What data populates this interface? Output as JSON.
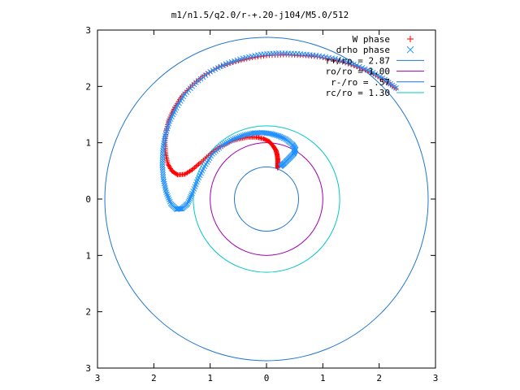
{
  "chart_data": {
    "type": "scatter",
    "title": "m1/n1.5/q2.0/r-+.20-j104/M5.0/512",
    "xlabel": "",
    "ylabel": "",
    "xlim": [
      -3,
      3
    ],
    "ylim": [
      -3,
      3
    ],
    "grid": false,
    "legend_position": "top-right",
    "x_ticks": [
      {
        "value": -3,
        "label": "3"
      },
      {
        "value": -2,
        "label": "2"
      },
      {
        "value": -1,
        "label": "1"
      },
      {
        "value": 0,
        "label": "0"
      },
      {
        "value": 1,
        "label": "1"
      },
      {
        "value": 2,
        "label": "2"
      },
      {
        "value": 3,
        "label": "3"
      }
    ],
    "y_ticks": [
      {
        "value": 3,
        "label": "3"
      },
      {
        "value": 2,
        "label": "2"
      },
      {
        "value": 1,
        "label": "1"
      },
      {
        "value": 0,
        "label": "0"
      },
      {
        "value": -1,
        "label": "1"
      },
      {
        "value": -2,
        "label": "2"
      },
      {
        "value": -3,
        "label": "3"
      }
    ],
    "series": [
      {
        "name": "W phase",
        "marker": "+",
        "color": "#ff0000",
        "points": [
          [
            0.2,
            0.55
          ],
          [
            0.2,
            0.62
          ],
          [
            0.2,
            0.7
          ],
          [
            0.19,
            0.78
          ],
          [
            0.17,
            0.86
          ],
          [
            0.12,
            0.94
          ],
          [
            0.05,
            1.02
          ],
          [
            -0.05,
            1.07
          ],
          [
            -0.18,
            1.1
          ],
          [
            -0.32,
            1.1
          ],
          [
            -0.48,
            1.07
          ],
          [
            -0.65,
            1.02
          ],
          [
            -0.82,
            0.93
          ],
          [
            -1.0,
            0.8
          ],
          [
            -1.18,
            0.64
          ],
          [
            -1.32,
            0.52
          ],
          [
            -1.45,
            0.44
          ],
          [
            -1.58,
            0.43
          ],
          [
            -1.68,
            0.5
          ],
          [
            -1.75,
            0.62
          ],
          [
            -1.79,
            0.8
          ],
          [
            -1.8,
            1.0
          ],
          [
            -1.78,
            1.22
          ],
          [
            -1.73,
            1.42
          ],
          [
            -1.63,
            1.63
          ],
          [
            -1.5,
            1.83
          ],
          [
            -1.32,
            2.02
          ],
          [
            -1.1,
            2.2
          ],
          [
            -0.85,
            2.34
          ],
          [
            -0.55,
            2.44
          ],
          [
            -0.25,
            2.51
          ],
          [
            0.05,
            2.55
          ],
          [
            0.35,
            2.56
          ],
          [
            0.65,
            2.55
          ],
          [
            0.95,
            2.52
          ],
          [
            1.25,
            2.46
          ],
          [
            1.55,
            2.37
          ],
          [
            1.85,
            2.25
          ],
          [
            2.1,
            2.11
          ],
          [
            2.3,
            1.96
          ]
        ]
      },
      {
        "name": "drho phase",
        "marker": "x",
        "color": "#1e90ff",
        "points": [
          [
            0.25,
            0.58
          ],
          [
            0.32,
            0.64
          ],
          [
            0.4,
            0.72
          ],
          [
            0.48,
            0.8
          ],
          [
            0.52,
            0.88
          ],
          [
            0.46,
            0.97
          ],
          [
            0.35,
            1.06
          ],
          [
            0.22,
            1.12
          ],
          [
            0.08,
            1.16
          ],
          [
            -0.08,
            1.18
          ],
          [
            -0.24,
            1.17
          ],
          [
            -0.42,
            1.13
          ],
          [
            -0.6,
            1.06
          ],
          [
            -0.78,
            0.96
          ],
          [
            -0.96,
            0.8
          ],
          [
            -1.1,
            0.58
          ],
          [
            -1.22,
            0.34
          ],
          [
            -1.32,
            0.1
          ],
          [
            -1.4,
            -0.08
          ],
          [
            -1.5,
            -0.17
          ],
          [
            -1.6,
            -0.18
          ],
          [
            -1.7,
            -0.08
          ],
          [
            -1.78,
            0.12
          ],
          [
            -1.83,
            0.35
          ],
          [
            -1.85,
            0.6
          ],
          [
            -1.84,
            0.86
          ],
          [
            -1.8,
            1.12
          ],
          [
            -1.72,
            1.38
          ],
          [
            -1.6,
            1.62
          ],
          [
            -1.45,
            1.86
          ],
          [
            -1.25,
            2.07
          ],
          [
            -1.0,
            2.26
          ],
          [
            -0.72,
            2.4
          ],
          [
            -0.42,
            2.5
          ],
          [
            -0.1,
            2.57
          ],
          [
            0.22,
            2.59
          ],
          [
            0.55,
            2.58
          ],
          [
            0.88,
            2.55
          ],
          [
            1.22,
            2.49
          ],
          [
            1.55,
            2.39
          ],
          [
            1.85,
            2.27
          ],
          [
            2.1,
            2.12
          ],
          [
            2.3,
            1.97
          ]
        ]
      }
    ],
    "circles": [
      {
        "name": "r+/ro = 2.87",
        "radius": 2.87,
        "color": "#1f77d2"
      },
      {
        "name": "ro/ro = 1.00",
        "radius": 1.0,
        "color": "#a000b0"
      },
      {
        "name": "r-/ro = .57",
        "radius": 0.57,
        "color": "#1f77d2"
      },
      {
        "name": "rc/ro = 1.30",
        "radius": 1.3,
        "color": "#00c8c8"
      }
    ]
  }
}
